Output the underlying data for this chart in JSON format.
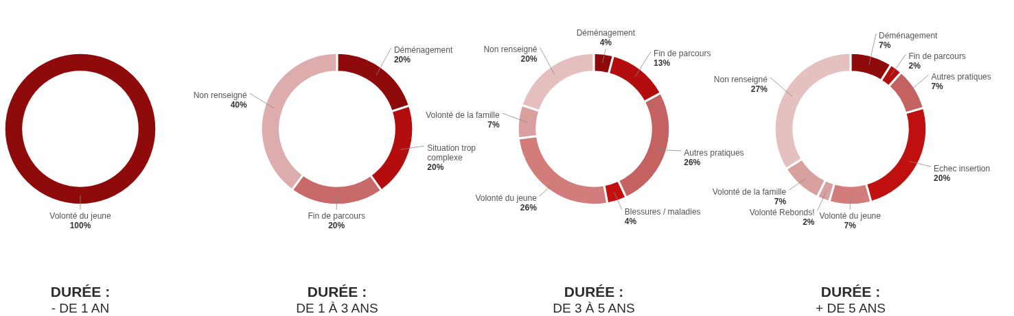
{
  "chart_data": [
    {
      "type": "donut",
      "title": "DURÉE :",
      "subtitle": "- DE 1 AN",
      "categories": [
        "Volonté du jeune"
      ],
      "values": [
        100
      ],
      "value_labels": [
        "100%"
      ],
      "colors": [
        "#8f0a0a"
      ]
    },
    {
      "type": "donut",
      "title": "DURÉE :",
      "subtitle": "DE 1 À 3 ANS",
      "categories": [
        "Déménagement",
        "Situation trop complexe",
        "Fin de parcours",
        "Non renseigné"
      ],
      "values": [
        20,
        20,
        20,
        40
      ],
      "value_labels": [
        "20%",
        "20%",
        "20%",
        "40%"
      ],
      "colors": [
        "#8f0a0a",
        "#b30d0d",
        "#c96a6a",
        "#ddacac"
      ]
    },
    {
      "type": "donut",
      "title": "DURÉE :",
      "subtitle": "DE 3 À 5 ANS",
      "categories": [
        "Déménagement",
        "Fin de parcours",
        "Autres pratiques",
        "Blessures / maladies",
        "Volonté du jeune",
        "Volonté de la famille",
        "Non renseigné"
      ],
      "values": [
        4,
        13,
        26,
        4,
        26,
        7,
        20
      ],
      "value_labels": [
        "4%",
        "13%",
        "26%",
        "4%",
        "26%",
        "7%",
        "20%"
      ],
      "colors": [
        "#8f0a0a",
        "#b30d0d",
        "#c46262",
        "#c20f0f",
        "#d27c7c",
        "#d99f9f",
        "#e5bfbf"
      ]
    },
    {
      "type": "donut",
      "title": "DURÉE :",
      "subtitle": "+ DE 5 ANS",
      "categories": [
        "Déménagement",
        "Fin de parcours",
        "Autres pratiques",
        "Echec insertion",
        "Volonté du jeune",
        "Volonté Rebonds!",
        "Volonté de la famille",
        "Non renseigné"
      ],
      "values": [
        7,
        2,
        7,
        20,
        7,
        2,
        7,
        27
      ],
      "value_labels": [
        "7%",
        "2%",
        "7%",
        "20%",
        "7%",
        "2%",
        "7%",
        "27%"
      ],
      "colors": [
        "#8f0a0a",
        "#b30d0d",
        "#c46262",
        "#c00f0f",
        "#d27c7c",
        "#d9a0a0",
        "#d9a0a0",
        "#e5c0c0"
      ]
    }
  ]
}
